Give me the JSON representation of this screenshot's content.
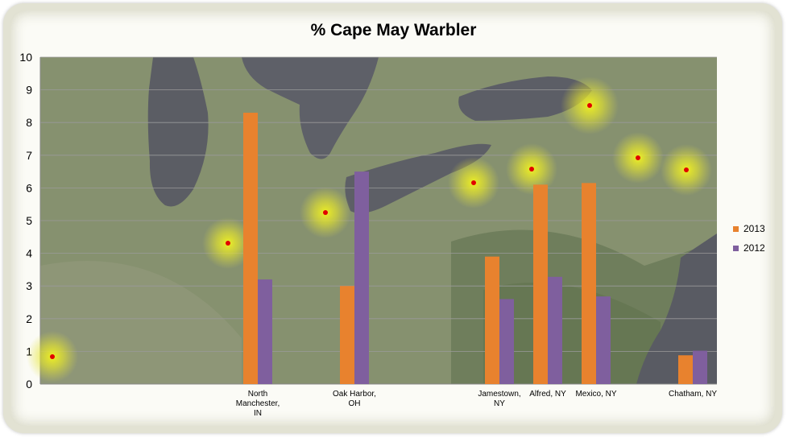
{
  "chart_data": {
    "type": "bar",
    "title": "% Cape May Warbler",
    "xlabel": "",
    "ylabel": "",
    "ylim": [
      0,
      10
    ],
    "yticks": [
      0,
      1,
      2,
      3,
      4,
      5,
      6,
      7,
      8,
      9,
      10
    ],
    "categories": [
      "",
      "",
      "",
      "",
      "North Manchester, IN",
      "",
      "Oak Harbor, OH",
      "",
      "",
      "Jamestown, NY",
      "Alfred, NY",
      "Mexico, NY",
      "",
      "Chatham, NY"
    ],
    "category_lines": [
      [],
      [],
      [],
      [],
      [
        "North",
        "Manchester,",
        "IN"
      ],
      [],
      [
        "Oak Harbor,",
        "OH"
      ],
      [],
      [],
      [
        "Jamestown,",
        "NY"
      ],
      [
        "Alfred, NY"
      ],
      [
        "Mexico, NY"
      ],
      [],
      [
        "Chatham, NY"
      ]
    ],
    "series": [
      {
        "name": "2013",
        "color": "#e8822e",
        "values": [
          null,
          null,
          null,
          null,
          8.3,
          null,
          3.0,
          null,
          null,
          3.9,
          6.1,
          6.15,
          null,
          0.88
        ]
      },
      {
        "name": "2012",
        "color": "#7f5f9e",
        "values": [
          null,
          null,
          null,
          null,
          3.2,
          null,
          6.5,
          null,
          null,
          2.6,
          3.28,
          2.68,
          null,
          1.02
        ]
      }
    ],
    "background": "satellite-map",
    "legend_position": "right",
    "grid": true
  }
}
